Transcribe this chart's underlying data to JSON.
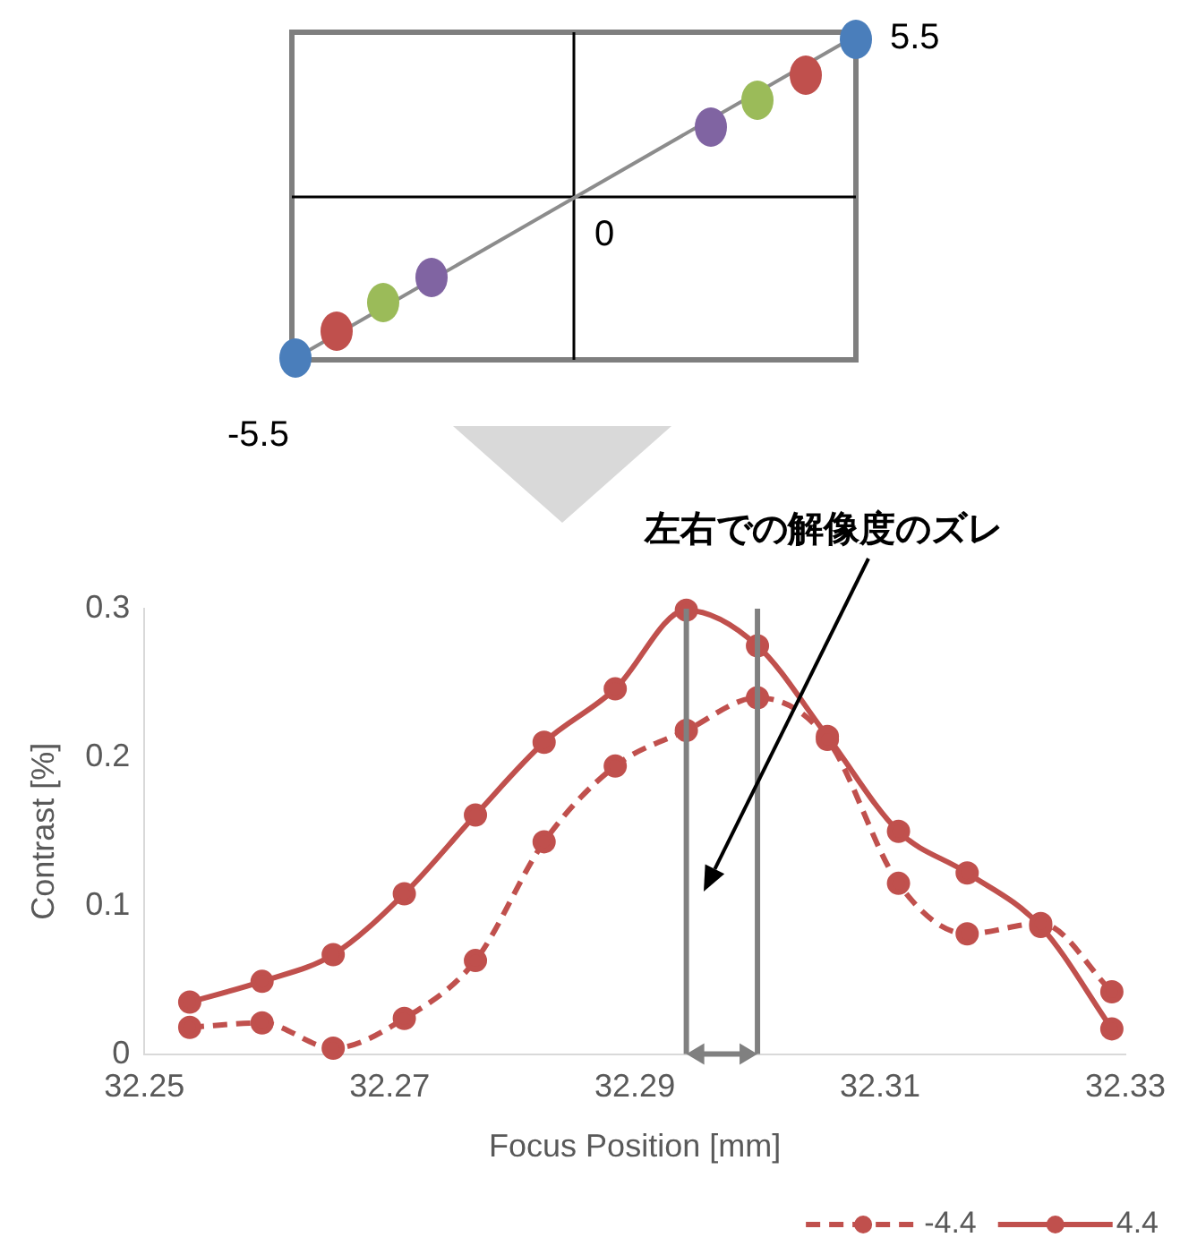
{
  "chart_data": [
    {
      "type": "other",
      "annotations": [
        "5.5",
        "0",
        "-5.5"
      ]
    },
    {
      "type": "line",
      "xlabel": "Focus Position [mm]",
      "ylabel": "Contrast [%]",
      "xlim": [
        32.25,
        32.33
      ],
      "xticks": [
        32.25,
        32.27,
        32.29,
        32.31,
        32.33
      ],
      "ylim": [
        0,
        0.3
      ],
      "yticks": [
        0,
        0.1,
        0.2,
        0.3
      ],
      "grid": false,
      "legend": "bottom right",
      "marker": "circle",
      "x": [
        32.2537,
        32.2596,
        32.2654,
        32.2712,
        32.277,
        32.2826,
        32.2884,
        32.2942,
        32.3,
        32.3057,
        32.3115,
        32.3171,
        32.3231,
        32.3289
      ],
      "series": [
        {
          "name": "-4.4",
          "color": "#c0504d",
          "line_style": "dashed",
          "values": [
            0.018,
            0.021,
            0.004,
            0.024,
            0.063,
            0.143,
            0.194,
            0.218,
            0.24,
            0.212,
            0.115,
            0.081,
            0.088,
            0.042
          ]
        },
        {
          "name": "4.4",
          "color": "#c0504d",
          "line_style": "solid",
          "values": [
            0.035,
            0.049,
            0.067,
            0.108,
            0.161,
            0.21,
            0.246,
            0.299,
            0.275,
            0.214,
            0.15,
            0.122,
            0.086,
            0.017
          ]
        }
      ],
      "ref_lines": [
        {
          "axis": "x",
          "value": 32.2942,
          "color": "#808080"
        },
        {
          "axis": "x",
          "value": 32.3,
          "color": "#808080"
        }
      ],
      "annotations": [
        "左右での解像度のズレ"
      ]
    }
  ]
}
